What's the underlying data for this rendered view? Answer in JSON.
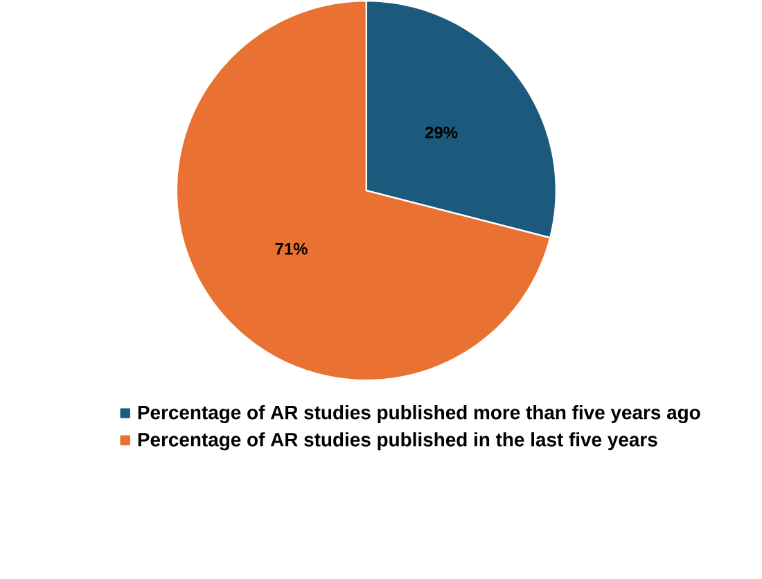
{
  "chart_data": {
    "type": "pie",
    "categories": [
      "Percentage of AR studies published more than five years ago",
      "Percentage of AR studies published in the last five years"
    ],
    "values": [
      29,
      71
    ],
    "colors": [
      "#1c5a7d",
      "#e97132"
    ],
    "value_labels": [
      "29%",
      "71%"
    ],
    "legend": "bottom"
  }
}
